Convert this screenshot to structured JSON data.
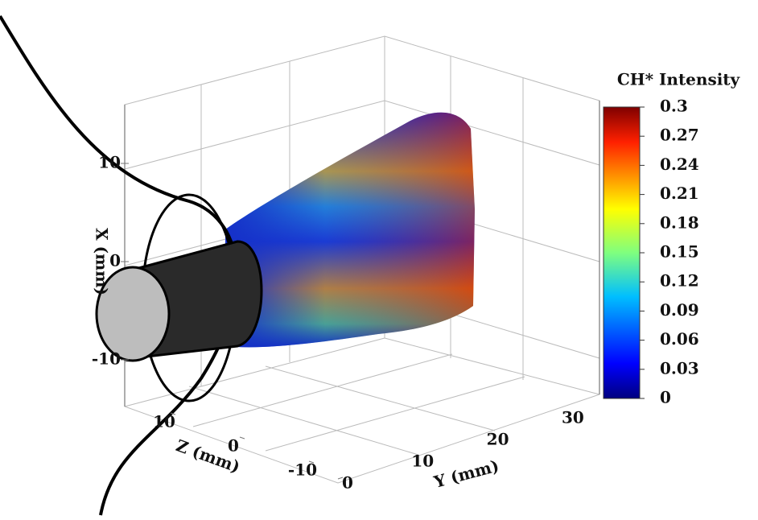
{
  "chart_data": {
    "type": "surface3d",
    "colorbar": {
      "title": "CH* Intensity",
      "lim": [
        0,
        0.3
      ],
      "ticks": [
        0,
        0.03,
        0.06,
        0.09,
        0.12,
        0.15,
        0.18,
        0.21,
        0.24,
        0.27,
        0.3
      ],
      "colormap": "jet"
    },
    "x_axis": {
      "label": "X (mm)",
      "ticks": [
        -10,
        0,
        10
      ]
    },
    "y_axis": {
      "label": "Y (mm)",
      "ticks": [
        0,
        10,
        20,
        30
      ]
    },
    "z_axis": {
      "label": "Z (mm)",
      "ticks": [
        -10,
        0,
        10
      ]
    }
  }
}
